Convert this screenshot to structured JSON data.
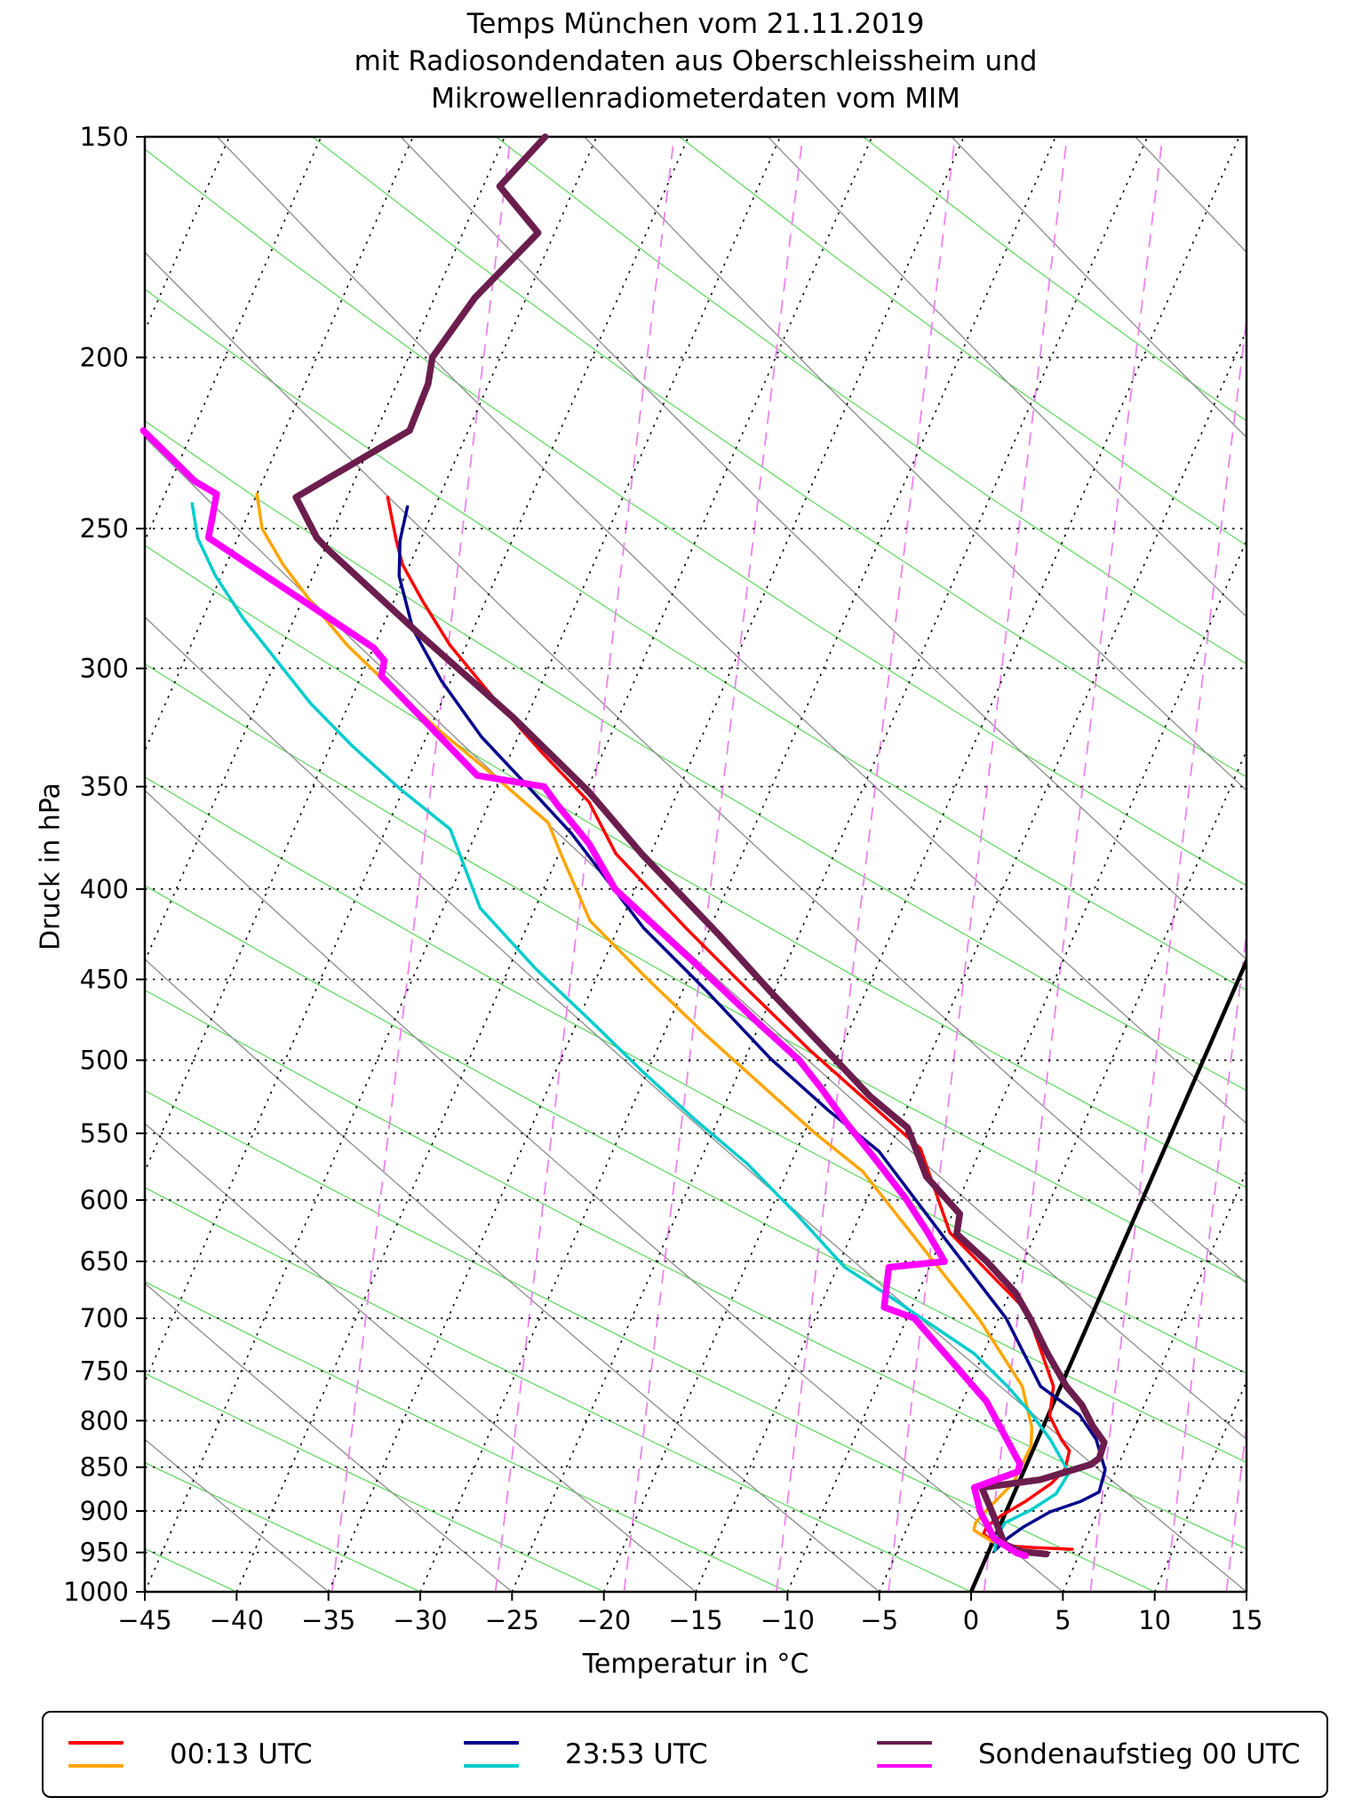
{
  "title": {
    "line1": "Temps München vom 21.11.2019",
    "line2": "mit Radiosondendaten aus Oberschleissheim und",
    "line3": "Mikrowellenradiometerdaten vom MIM"
  },
  "axes": {
    "ylabel": "Druck in hPa",
    "xlabel": "Temperatur in °C",
    "y_tick_labels": [
      "150",
      "200",
      "250",
      "300",
      "350",
      "400",
      "450",
      "500",
      "550",
      "600",
      "650",
      "700",
      "750",
      "800",
      "850",
      "900",
      "950",
      "1000"
    ],
    "y_tick_values": [
      150,
      200,
      250,
      300,
      350,
      400,
      450,
      500,
      550,
      600,
      650,
      700,
      750,
      800,
      850,
      900,
      950,
      1000
    ],
    "x_tick_labels": [
      "−45",
      "−40",
      "−35",
      "−30",
      "−25",
      "−20",
      "−15",
      "−10",
      "−5",
      "0",
      "5",
      "10",
      "15"
    ],
    "x_tick_values": [
      -45,
      -40,
      -35,
      -30,
      -25,
      -20,
      -15,
      -10,
      -5,
      0,
      5,
      10,
      15
    ]
  },
  "legend": {
    "entries": [
      {
        "label": "00:13 UTC",
        "colors": [
          "#ff0000",
          "#ffa500"
        ]
      },
      {
        "label": "23:53 UTC",
        "colors": [
          "#00008b",
          "#00cccc"
        ]
      },
      {
        "label": "Sondenaufstieg 00 UTC",
        "colors": [
          "#6b1d4d",
          "#ff00ff"
        ]
      }
    ]
  },
  "chart_data": {
    "type": "line",
    "variant": "skew-T log-P sounding",
    "title": "Temps München vom 21.11.2019",
    "xlabel": "Temperatur in °C",
    "ylabel": "Druck in hPa",
    "x_range_at_1000hPa": [
      -45,
      15
    ],
    "pressure_range_hPa": [
      150,
      1000
    ],
    "skew_degC_per_decade": 42,
    "grid": {
      "isobar_levels_hPa": [
        200,
        250,
        300,
        350,
        400,
        450,
        500,
        550,
        600,
        650,
        700,
        750,
        800,
        850,
        900,
        950
      ],
      "isotherm_start": -100,
      "isotherm_end": 15,
      "isotherm_step": 5,
      "zero_isotherm": {
        "color": "#000000",
        "width": 4.5
      },
      "isoline_color": "#000000",
      "dry_adiabats": {
        "color": "#8c8c8c",
        "t1000_values": [
          -65,
          -55,
          -45,
          -35,
          -25,
          -15,
          -5,
          5,
          15,
          25,
          35,
          45,
          55,
          65,
          75,
          85,
          95,
          105,
          115,
          125,
          135
        ],
        "a": 2424,
        "c": 322
      },
      "moist_adiabats": {
        "color": "#66d966",
        "t1000_values": [
          -100,
          -90,
          -80,
          -70,
          -60,
          -50,
          -40,
          -30,
          -20,
          -10,
          0,
          10,
          20,
          30,
          40,
          50,
          60,
          70,
          80,
          90,
          100,
          110,
          120,
          130
        ],
        "a": 4321,
        "c": 1108
      },
      "mixing_ratio_lines": {
        "color": "#ee82ee",
        "t1000_values": [
          -34.8,
          -25.9,
          -18.9,
          -10.6,
          -4.5,
          0.7,
          6.5,
          10.6,
          13.9,
          16.8
        ],
        "a": -244,
        "c": 0
      }
    },
    "series": [
      {
        "name": "00:13 UTC Temperatur",
        "color": "#ff0000",
        "width": 3.5,
        "points": [
          [
            240,
            -57.8
          ],
          [
            254,
            -56.3
          ],
          [
            262,
            -55.4
          ],
          [
            275,
            -53.4
          ],
          [
            291,
            -50.9
          ],
          [
            311,
            -47.4
          ],
          [
            335,
            -43.3
          ],
          [
            357,
            -39.6
          ],
          [
            382,
            -36.9
          ],
          [
            421,
            -31.3
          ],
          [
            456,
            -26.5
          ],
          [
            494,
            -21.6
          ],
          [
            526,
            -17.5
          ],
          [
            561,
            -13.3
          ],
          [
            626,
            -9.7
          ],
          [
            694,
            -3.6
          ],
          [
            765,
            -0.4
          ],
          [
            795,
            0.1
          ],
          [
            820,
            1.3
          ],
          [
            832,
            2.0
          ],
          [
            852,
            2.2
          ],
          [
            868,
            1.8
          ],
          [
            889,
            0.8
          ],
          [
            906,
            -0.2
          ],
          [
            918,
            -0.7
          ],
          [
            927,
            -0.7
          ],
          [
            941,
            0.3
          ],
          [
            944,
            2.4
          ],
          [
            946,
            4.5
          ]
        ]
      },
      {
        "name": "00:13 UTC Taupunkt",
        "color": "#ffa500",
        "width": 3.5,
        "points": [
          [
            239,
            -65.0
          ],
          [
            250,
            -63.9
          ],
          [
            262,
            -61.9
          ],
          [
            275,
            -59.5
          ],
          [
            291,
            -56.5
          ],
          [
            308,
            -53.0
          ],
          [
            326,
            -49.3
          ],
          [
            345,
            -45.4
          ],
          [
            367,
            -41.3
          ],
          [
            382,
            -39.9
          ],
          [
            417,
            -36.7
          ],
          [
            449,
            -32.3
          ],
          [
            483,
            -27.8
          ],
          [
            517,
            -23.4
          ],
          [
            550,
            -19.4
          ],
          [
            578,
            -15.9
          ],
          [
            650,
            -9.9
          ],
          [
            700,
            -6.1
          ],
          [
            765,
            -2.1
          ],
          [
            807,
            -0.6
          ],
          [
            827,
            -0.2
          ],
          [
            868,
            -0.3
          ],
          [
            899,
            -1.1
          ],
          [
            914,
            -1.4
          ],
          [
            923,
            -1.3
          ],
          [
            936,
            -0.1
          ],
          [
            944,
            1.5
          ]
        ]
      },
      {
        "name": "23:53 UTC Temperatur",
        "color": "#00008b",
        "width": 3.5,
        "points": [
          [
            243,
            -56.5
          ],
          [
            254,
            -56.1
          ],
          [
            266,
            -55.3
          ],
          [
            285,
            -53.3
          ],
          [
            305,
            -50.5
          ],
          [
            328,
            -47.0
          ],
          [
            348,
            -43.6
          ],
          [
            372,
            -39.8
          ],
          [
            421,
            -33.6
          ],
          [
            456,
            -28.8
          ],
          [
            499,
            -23.6
          ],
          [
            534,
            -19.2
          ],
          [
            563,
            -15.5
          ],
          [
            630,
            -9.9
          ],
          [
            700,
            -4.6
          ],
          [
            765,
            -1.1
          ],
          [
            794,
            1.7
          ],
          [
            820,
            3.2
          ],
          [
            853,
            4.4
          ],
          [
            878,
            4.6
          ],
          [
            889,
            3.8
          ],
          [
            901,
            2.4
          ],
          [
            919,
            1.3
          ],
          [
            933,
            0.7
          ],
          [
            948,
            0.3
          ]
        ]
      },
      {
        "name": "23:53 UTC Taupunkt",
        "color": "#00cccc",
        "width": 3.5,
        "points": [
          [
            242,
            -68.3
          ],
          [
            253,
            -67.2
          ],
          [
            266,
            -65.3
          ],
          [
            281,
            -62.8
          ],
          [
            295,
            -60.3
          ],
          [
            314,
            -57.1
          ],
          [
            332,
            -53.8
          ],
          [
            351,
            -50.2
          ],
          [
            370,
            -46.5
          ],
          [
            410,
            -43.0
          ],
          [
            444,
            -38.5
          ],
          [
            475,
            -34.3
          ],
          [
            508,
            -30.2
          ],
          [
            540,
            -26.3
          ],
          [
            572,
            -22.4
          ],
          [
            610,
            -18.6
          ],
          [
            655,
            -14.6
          ],
          [
            680,
            -11.5
          ],
          [
            700,
            -9.2
          ],
          [
            733,
            -5.5
          ],
          [
            765,
            -2.9
          ],
          [
            792,
            -1.0
          ],
          [
            820,
            0.7
          ],
          [
            850,
            2.2
          ],
          [
            857,
            2.5
          ],
          [
            880,
            2.3
          ],
          [
            899,
            1.3
          ],
          [
            914,
            0.2
          ],
          [
            933,
            0.1
          ],
          [
            947,
            0.3
          ]
        ]
      },
      {
        "name": "Sondenaufstieg 00 UTC Temperatur",
        "color": "#6b1d4d",
        "width": 7.5,
        "points": [
          [
            150,
            -57.8
          ],
          [
            160,
            -59.1
          ],
          [
            170,
            -55.9
          ],
          [
            185,
            -57.8
          ],
          [
            200,
            -58.7
          ],
          [
            207,
            -58.3
          ],
          [
            220,
            -58.2
          ],
          [
            240,
            -62.8
          ],
          [
            253,
            -60.7
          ],
          [
            257,
            -59.8
          ],
          [
            287,
            -52.8
          ],
          [
            320,
            -45.7
          ],
          [
            352,
            -39.9
          ],
          [
            382,
            -35.5
          ],
          [
            425,
            -29.3
          ],
          [
            458,
            -25.1
          ],
          [
            500,
            -20.0
          ],
          [
            524,
            -17.3
          ],
          [
            546,
            -14.5
          ],
          [
            582,
            -12.3
          ],
          [
            611,
            -9.6
          ],
          [
            627,
            -9.3
          ],
          [
            650,
            -7.0
          ],
          [
            677,
            -4.7
          ],
          [
            700,
            -3.3
          ],
          [
            733,
            -1.5
          ],
          [
            765,
            0.3
          ],
          [
            784,
            1.6
          ],
          [
            806,
            2.7
          ],
          [
            823,
            3.7
          ],
          [
            840,
            3.8
          ],
          [
            847,
            3.5
          ],
          [
            864,
            1.1
          ],
          [
            873,
            -1.9
          ],
          [
            900,
            -0.8
          ],
          [
            940,
            0.7
          ],
          [
            949,
            1.8
          ],
          [
            952,
            3.2
          ]
        ]
      },
      {
        "name": "Sondenaufstieg 00 UTC Taupunkt",
        "color": "#ff00ff",
        "width": 7.5,
        "points": [
          [
            220,
            -72.7
          ],
          [
            235,
            -68.7
          ],
          [
            239,
            -67.2
          ],
          [
            253,
            -66.6
          ],
          [
            292,
            -55.0
          ],
          [
            297,
            -54.1
          ],
          [
            303,
            -53.9
          ],
          [
            345,
            -46.3
          ],
          [
            350,
            -42.4
          ],
          [
            358,
            -41.3
          ],
          [
            377,
            -38.6
          ],
          [
            400,
            -36.1
          ],
          [
            444,
            -29.5
          ],
          [
            475,
            -25.3
          ],
          [
            500,
            -22.0
          ],
          [
            518,
            -20.2
          ],
          [
            542,
            -18.0
          ],
          [
            570,
            -15.4
          ],
          [
            599,
            -12.9
          ],
          [
            626,
            -10.9
          ],
          [
            650,
            -9.3
          ],
          [
            655,
            -12.2
          ],
          [
            690,
            -11.5
          ],
          [
            700,
            -9.6
          ],
          [
            780,
            -3.7
          ],
          [
            846,
            -0.4
          ],
          [
            855,
            -0.3
          ],
          [
            873,
            -2.3
          ],
          [
            901,
            -1.4
          ],
          [
            933,
            0.0
          ],
          [
            942,
            0.8
          ],
          [
            951,
            1.6
          ],
          [
            954,
            2.1
          ]
        ]
      }
    ]
  }
}
